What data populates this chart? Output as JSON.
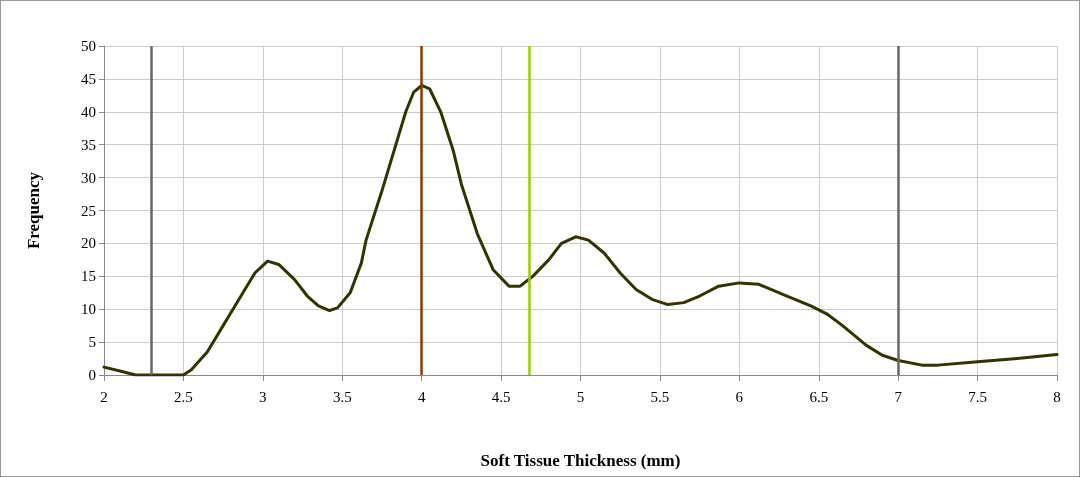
{
  "chart_data": {
    "type": "line",
    "xlabel": "Soft Tissue Thickness (mm)",
    "ylabel": "Frequency",
    "x": [
      2.0,
      2.1,
      2.2,
      2.3,
      2.4,
      2.5,
      2.55,
      2.65,
      2.75,
      2.85,
      2.95,
      3.03,
      3.1,
      3.2,
      3.28,
      3.35,
      3.42,
      3.47,
      3.55,
      3.62,
      3.65,
      3.75,
      3.85,
      3.9,
      3.95,
      4.0,
      4.05,
      4.12,
      4.2,
      4.25,
      4.35,
      4.45,
      4.55,
      4.62,
      4.7,
      4.8,
      4.88,
      4.97,
      5.05,
      5.15,
      5.25,
      5.35,
      5.45,
      5.55,
      5.65,
      5.75,
      5.87,
      6.0,
      6.12,
      6.3,
      6.45,
      6.55,
      6.65,
      6.8,
      6.9,
      7.0,
      7.15,
      7.25,
      7.5,
      7.75,
      8.0
    ],
    "series": [
      {
        "color": "#333300",
        "values": [
          1.2,
          0.6,
          0,
          0,
          0,
          0,
          0.8,
          3.5,
          7.5,
          11.5,
          15.5,
          17.3,
          16.8,
          14.5,
          12,
          10.5,
          9.8,
          10.2,
          12.5,
          17,
          20.5,
          28,
          36,
          40,
          43,
          44,
          43.5,
          40,
          34,
          29,
          21.5,
          16,
          13.5,
          13.5,
          15,
          17.5,
          20,
          21,
          20.5,
          18.5,
          15.5,
          13,
          11.5,
          10.7,
          11,
          12,
          13.5,
          14,
          13.8,
          12,
          10.5,
          9.3,
          7.5,
          4.5,
          3,
          2.2,
          1.5,
          1.5,
          2,
          2.5,
          3.1
        ]
      }
    ],
    "xlim": [
      2,
      8
    ],
    "xticks": [
      2,
      2.5,
      3,
      3.5,
      4,
      4.5,
      5,
      5.5,
      6,
      6.5,
      7,
      7.5,
      8
    ],
    "ylim": [
      0,
      50
    ],
    "yticks": [
      0,
      5,
      10,
      15,
      20,
      25,
      30,
      35,
      40,
      45,
      50
    ],
    "ref_lines": [
      {
        "axis": "x",
        "value": 2.3,
        "color": "#666666"
      },
      {
        "axis": "x",
        "value": 4.0,
        "color": "#993300"
      },
      {
        "axis": "x",
        "value": 4.68,
        "color": "#99cc00"
      },
      {
        "axis": "x",
        "value": 7.0,
        "color": "#666666"
      }
    ],
    "grid": true,
    "marker": "none",
    "line_style": "solid"
  }
}
